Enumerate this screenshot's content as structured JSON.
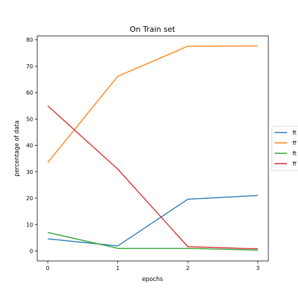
{
  "chart_data": {
    "type": "line",
    "title": "On Train set",
    "xlabel": "epochs",
    "ylabel": "percentage of data",
    "x": [
      0,
      1,
      2,
      3
    ],
    "xlim": [
      -0.15,
      3.15
    ],
    "ylim": [
      -3.8,
      81.5
    ],
    "xticks": [
      0,
      1,
      2,
      3
    ],
    "yticks": [
      0,
      10,
      20,
      30,
      40,
      50,
      60,
      70,
      80
    ],
    "grid": false,
    "legend_position": "right",
    "series": [
      {
        "name": "ft",
        "color": "#1f77b4",
        "values": [
          4.6,
          1.9,
          19.6,
          21.0
        ]
      },
      {
        "name": "ff",
        "color": "#ff7f0e",
        "values": [
          33.5,
          66.2,
          77.6,
          77.7
        ]
      },
      {
        "name": "ft",
        "color": "#2ca02c",
        "values": [
          7.0,
          1.0,
          1.0,
          0.3
        ]
      },
      {
        "name": "ff",
        "color": "#d62728",
        "values": [
          55.0,
          31.0,
          1.6,
          0.8
        ]
      }
    ]
  }
}
